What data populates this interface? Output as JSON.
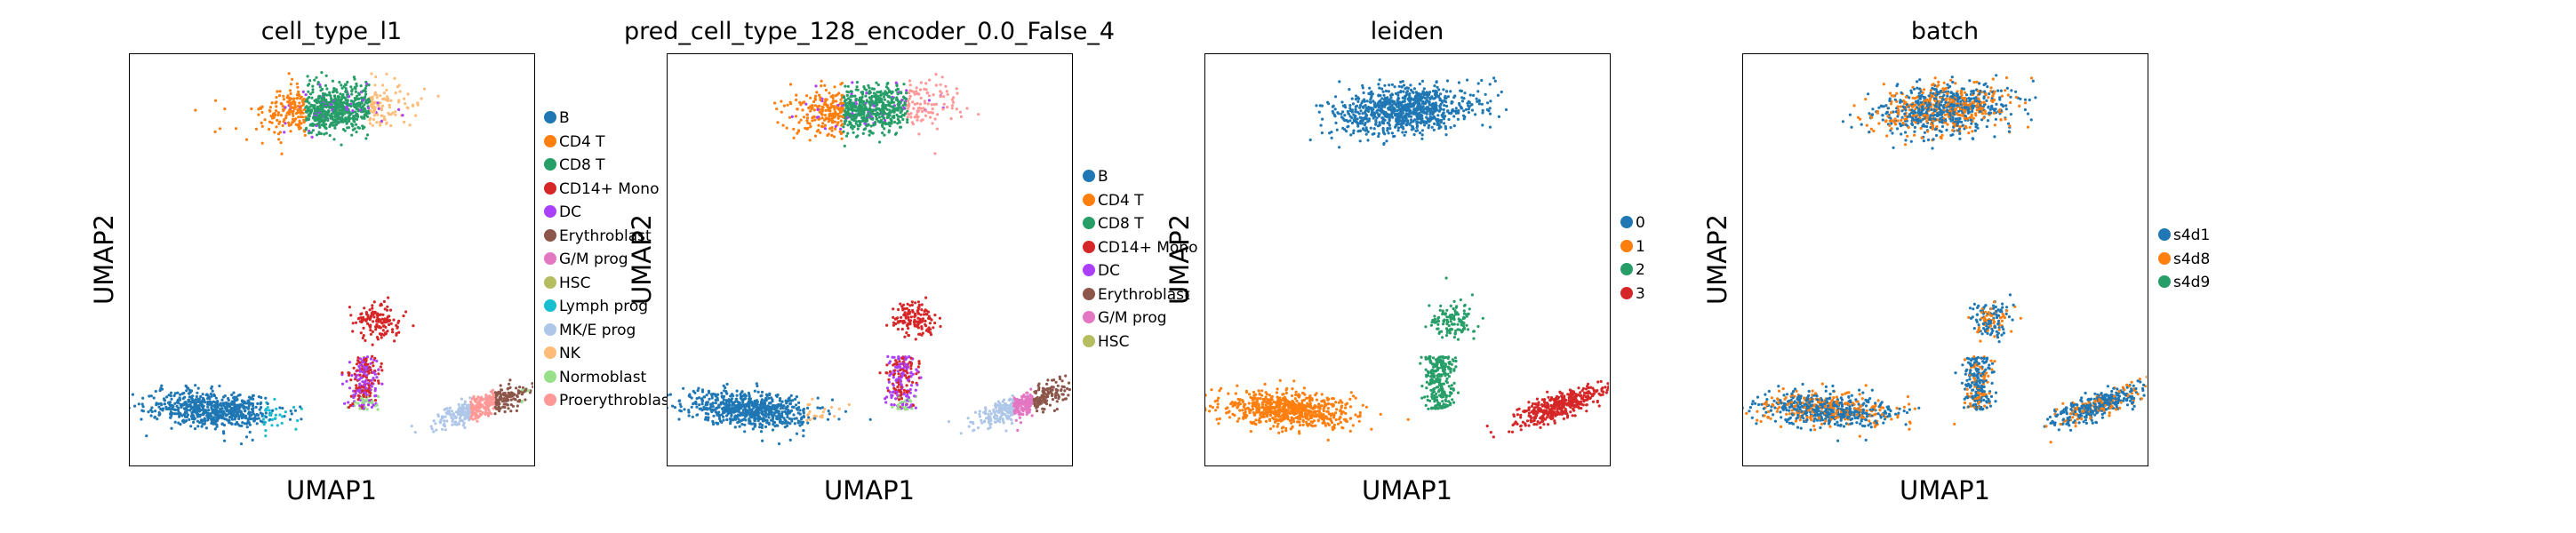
{
  "chart_data": [
    {
      "type": "scatter",
      "title": "cell_type_l1",
      "xlabel": "UMAP1",
      "ylabel": "UMAP2",
      "grid": false,
      "legend_placement": "right",
      "legend": [
        {
          "label": "B",
          "color": "#1f77b4"
        },
        {
          "label": "CD4 T",
          "color": "#ff7f0e"
        },
        {
          "label": "CD8 T",
          "color": "#279e68"
        },
        {
          "label": "CD14+ Mono",
          "color": "#d62728"
        },
        {
          "label": "DC",
          "color": "#aa40fc"
        },
        {
          "label": "Erythroblast",
          "color": "#8c564b"
        },
        {
          "label": "G/M prog",
          "color": "#e377c2"
        },
        {
          "label": "HSC",
          "color": "#b5bd61"
        },
        {
          "label": "Lymph prog",
          "color": "#17becf"
        },
        {
          "label": "MK/E prog",
          "color": "#aec7e8"
        },
        {
          "label": "NK",
          "color": "#ffbb78"
        },
        {
          "label": "Normoblast",
          "color": "#98df8a"
        },
        {
          "label": "Proerythroblast",
          "color": "#ff9896"
        }
      ]
    },
    {
      "type": "scatter",
      "title": "pred_cell_type_128_encoder_0.0_False_4",
      "xlabel": "UMAP1",
      "ylabel": "UMAP2",
      "grid": false,
      "legend_placement": "right",
      "legend": [
        {
          "label": "B",
          "color": "#1f77b4"
        },
        {
          "label": "CD4 T",
          "color": "#ff7f0e"
        },
        {
          "label": "CD8 T",
          "color": "#279e68"
        },
        {
          "label": "CD14+ Mono",
          "color": "#d62728"
        },
        {
          "label": "DC",
          "color": "#aa40fc"
        },
        {
          "label": "Erythroblast",
          "color": "#8c564b"
        },
        {
          "label": "G/M prog",
          "color": "#e377c2"
        },
        {
          "label": "HSC",
          "color": "#b5bd61"
        }
      ]
    },
    {
      "type": "scatter",
      "title": "leiden",
      "xlabel": "UMAP1",
      "ylabel": "UMAP2",
      "grid": false,
      "legend_placement": "right",
      "legend": [
        {
          "label": "0",
          "color": "#1f77b4"
        },
        {
          "label": "1",
          "color": "#ff7f0e"
        },
        {
          "label": "2",
          "color": "#279e68"
        },
        {
          "label": "3",
          "color": "#d62728"
        }
      ]
    },
    {
      "type": "scatter",
      "title": "batch",
      "xlabel": "UMAP1",
      "ylabel": "UMAP2",
      "grid": false,
      "legend_placement": "right",
      "legend": [
        {
          "label": "s4d1",
          "color": "#1f77b4"
        },
        {
          "label": "s4d8",
          "color": "#ff7f0e"
        },
        {
          "label": "s4d9",
          "color": "#279e68"
        }
      ]
    }
  ]
}
